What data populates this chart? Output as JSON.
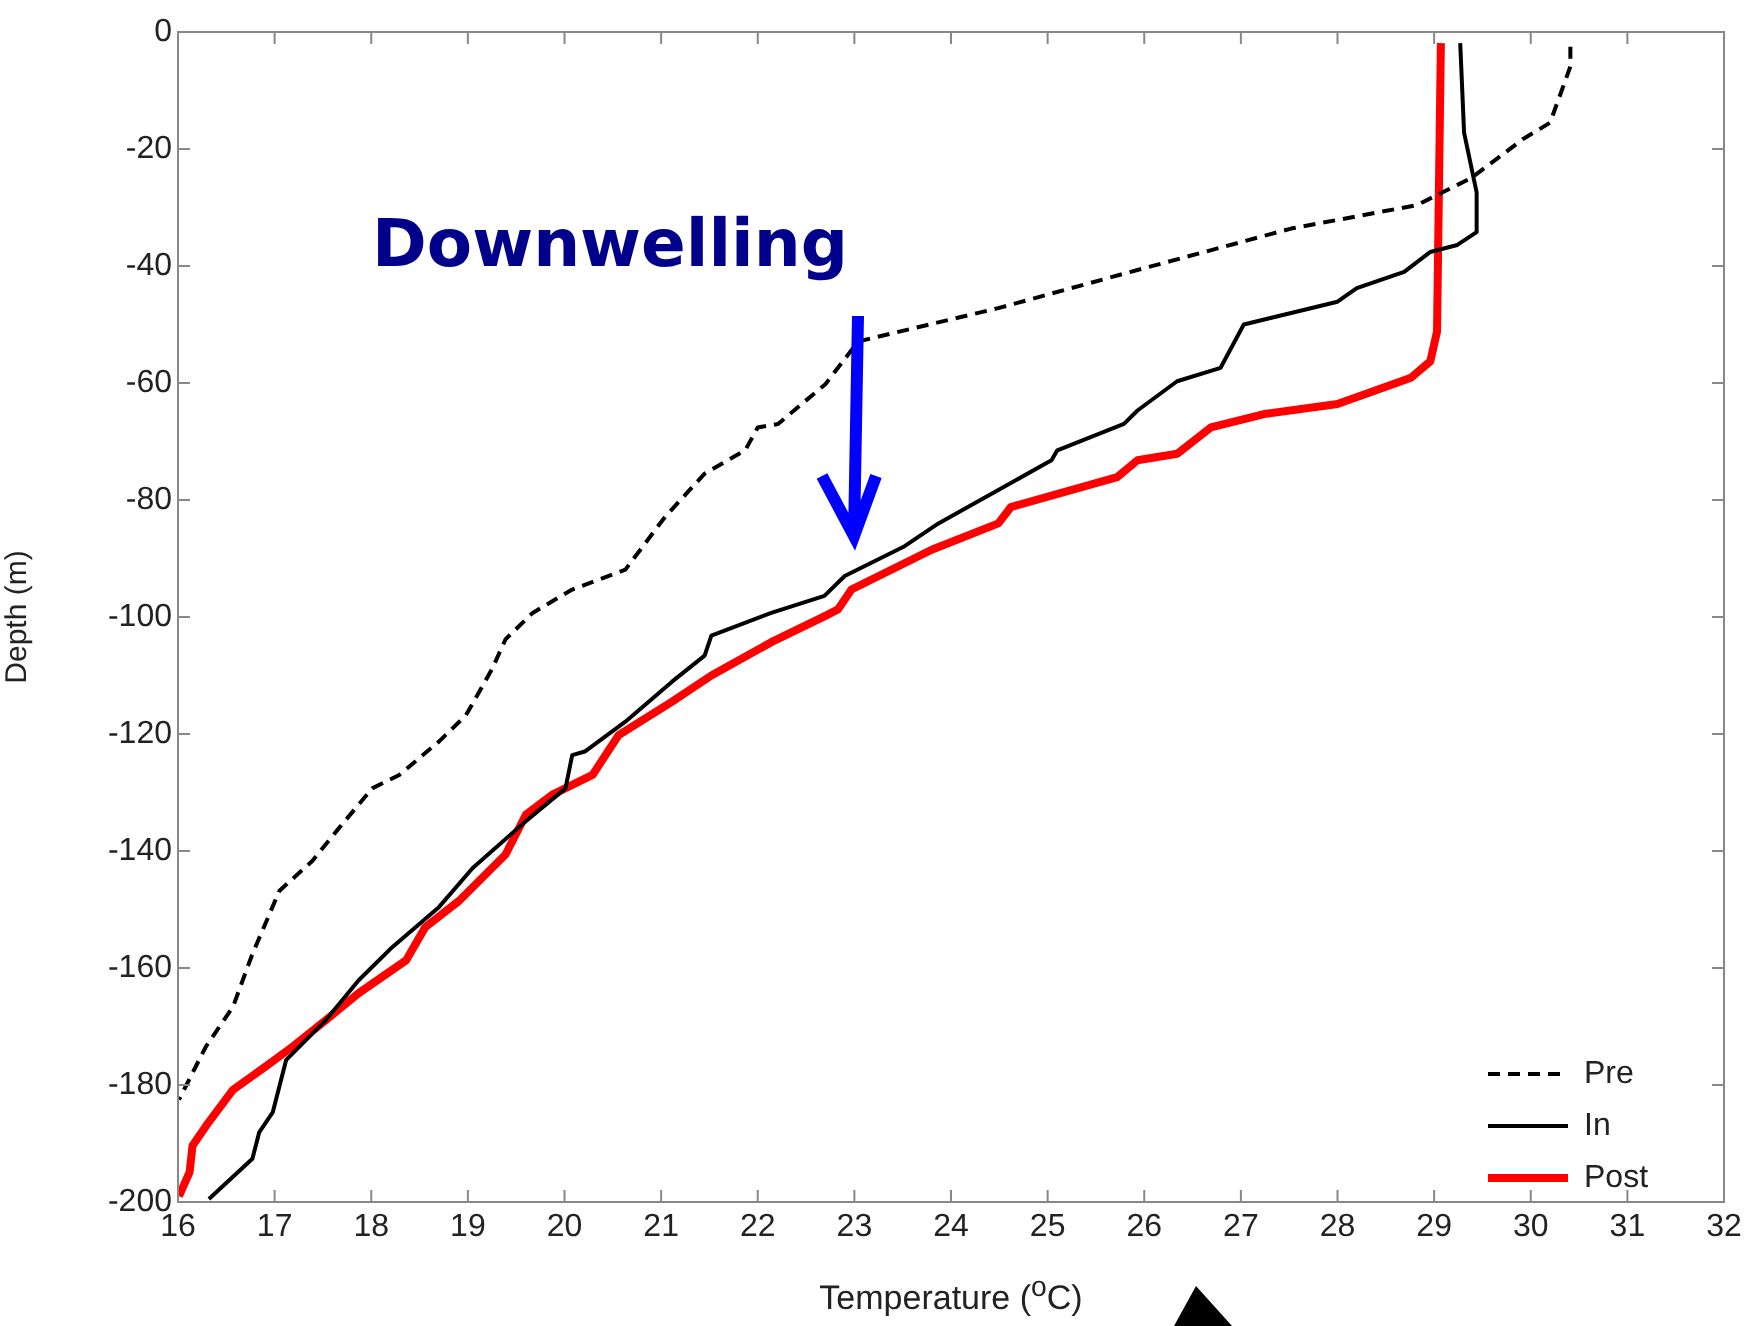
{
  "chart_data": {
    "type": "line",
    "xlabel": "Temperature ($^{o}$C)",
    "ylabel": "Depth (m)",
    "xlim": [
      16,
      32
    ],
    "xticks": [
      16,
      17,
      18,
      19,
      20,
      21,
      22,
      23,
      24,
      25,
      26,
      27,
      28,
      29,
      30,
      31,
      32
    ],
    "ylim": [
      -200,
      0
    ],
    "yticks": [
      -200,
      -180,
      -160,
      -140,
      -120,
      -100,
      -80,
      -60,
      -40,
      -20,
      0
    ],
    "grid": false,
    "legend": "bottom right",
    "marker": "none",
    "annotations": [
      "Downwelling"
    ],
    "series": [
      {
        "name": "Pre",
        "color": "#000000",
        "line_style": "dashed",
        "x": [
          30.41,
          30.41,
          30.2,
          29.92,
          29.38,
          28.82,
          27.52,
          25.86,
          24.49,
          23.04,
          22.7,
          22.21,
          22.0,
          21.87,
          21.45,
          21.04,
          20.63,
          20.08,
          19.67,
          19.39,
          19.25,
          18.98,
          18.7,
          18.29,
          18.01,
          17.67,
          17.39,
          17.05,
          16.77,
          16.57,
          16.29,
          16.01
        ],
        "values": [
          -2.5,
          -5.9,
          -15.5,
          -18.3,
          -25,
          -29.6,
          -33.6,
          -41,
          -47.2,
          -52.9,
          -60.2,
          -67,
          -67.6,
          -71.5,
          -75.5,
          -82.9,
          -91.9,
          -95.3,
          -99.3,
          -103.8,
          -108.9,
          -116.8,
          -121.3,
          -127,
          -129.3,
          -136,
          -141.7,
          -146.8,
          -157.6,
          -166.6,
          -173.4,
          -182.5
        ]
      },
      {
        "name": "In",
        "color": "#000000",
        "line_style": "solid",
        "x": [
          29.27,
          29.31,
          29.44,
          29.44,
          29.24,
          28.96,
          28.69,
          28.2,
          28.0,
          27.03,
          26.79,
          26.34,
          25.93,
          25.79,
          25.1,
          25.04,
          24.49,
          23.87,
          23.52,
          22.9,
          22.69,
          22.14,
          21.52,
          21.45,
          21.11,
          20.63,
          20.21,
          20.08,
          20.01,
          19.6,
          19.05,
          18.7,
          18.22,
          17.87,
          17.53,
          17.12,
          16.98,
          16.84,
          16.77,
          16.32
        ],
        "values": [
          -1.9,
          -17.2,
          -27.4,
          -34.2,
          -36.4,
          -37.6,
          -41,
          -43.8,
          -46.1,
          -50,
          -57.4,
          -59.7,
          -64.7,
          -67,
          -71.5,
          -73.2,
          -78.3,
          -84,
          -87.9,
          -93,
          -96.4,
          -99.3,
          -103.2,
          -106.6,
          -111.1,
          -117.9,
          -123,
          -123.6,
          -129.3,
          -134.9,
          -142.9,
          -149.6,
          -156.4,
          -162.1,
          -168.9,
          -175.7,
          -184.7,
          -188.1,
          -192.6,
          -199.5
        ]
      },
      {
        "name": "Post",
        "color": "#ff0000",
        "line_style": "solid",
        "x": [
          29.07,
          29.03,
          28.96,
          28.76,
          28.0,
          27.24,
          26.69,
          26.34,
          25.93,
          25.72,
          24.62,
          24.49,
          23.8,
          22.97,
          22.83,
          22.7,
          22.14,
          21.52,
          21.11,
          20.56,
          20.29,
          19.87,
          19.6,
          19.39,
          18.91,
          18.56,
          18.36,
          17.87,
          17.53,
          17.19,
          16.91,
          16.57,
          16.29,
          16.15,
          16.12,
          16.01
        ],
        "values": [
          -1.9,
          -51.2,
          -56.3,
          -59.1,
          -63.6,
          -65.3,
          -67.6,
          -72.1,
          -73.2,
          -76.1,
          -81.2,
          -84,
          -88.5,
          -95.3,
          -98.7,
          -99.8,
          -104.3,
          -110,
          -114.5,
          -120.2,
          -127,
          -130.4,
          -133.8,
          -140.6,
          -148.5,
          -153,
          -158.7,
          -164.3,
          -168.9,
          -173.4,
          -176.8,
          -180.8,
          -187,
          -190.4,
          -194.9,
          -199
        ]
      }
    ]
  }
}
